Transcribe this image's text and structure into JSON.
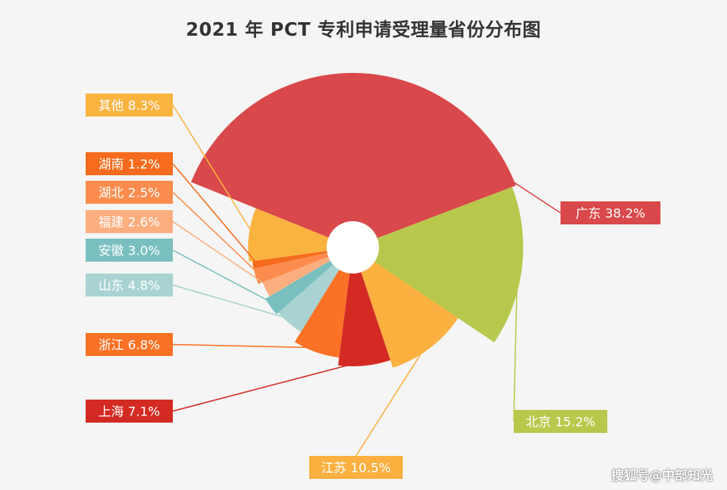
{
  "chart_data": {
    "type": "pie",
    "title": "2021 年 PCT 专利申请受理量省份分布图",
    "slices": [
      {
        "label": "广东 38.2%",
        "name": "广东",
        "value": 38.2,
        "color": "#d9484a"
      },
      {
        "label": "北京 15.2%",
        "name": "北京",
        "value": 15.2,
        "color": "#b8c84c"
      },
      {
        "label": "江苏 10.5%",
        "name": "江苏",
        "value": 10.5,
        "color": "#fbb040"
      },
      {
        "label": "上海 7.1%",
        "name": "上海",
        "value": 7.1,
        "color": "#d32a23"
      },
      {
        "label": "浙江 6.8%",
        "name": "浙江",
        "value": 6.8,
        "color": "#fb7125"
      },
      {
        "label": "山东 4.8%",
        "name": "山东",
        "value": 4.8,
        "color": "#a9d3d2"
      },
      {
        "label": "安徽 3.0%",
        "name": "安徽",
        "value": 3.0,
        "color": "#7abfbf"
      },
      {
        "label": "福建 2.6%",
        "name": "福建",
        "value": 2.6,
        "color": "#fcae7f"
      },
      {
        "label": "湖北 2.5%",
        "name": "湖北",
        "value": 2.5,
        "color": "#fc8c4d"
      },
      {
        "label": "湖南 1.2%",
        "name": "湖南",
        "value": 1.2,
        "color": "#f66b1d"
      },
      {
        "label": "其他 8.3%",
        "name": "其他",
        "value": 8.3,
        "color": "#fbb340"
      }
    ]
  },
  "watermark": "搜狐号@中部知光"
}
